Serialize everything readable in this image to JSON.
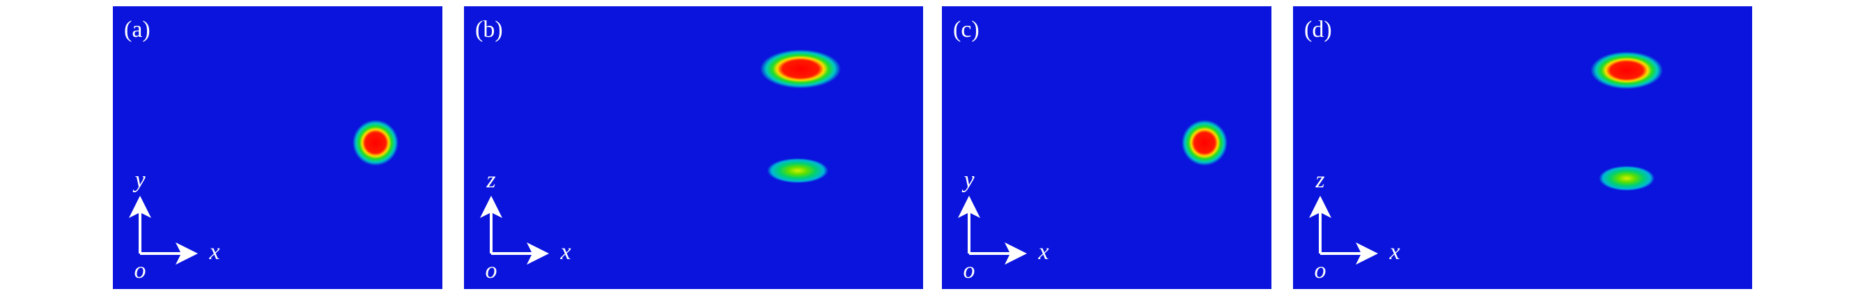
{
  "panels": [
    {
      "label": "(a)",
      "vertical_axis": "y",
      "horizontal_axis": "x",
      "origin": "o"
    },
    {
      "label": "(b)",
      "vertical_axis": "z",
      "horizontal_axis": "x",
      "origin": "o"
    },
    {
      "label": "(c)",
      "vertical_axis": "y",
      "horizontal_axis": "x",
      "origin": "o"
    },
    {
      "label": "(d)",
      "vertical_axis": "z",
      "horizontal_axis": "x",
      "origin": "o"
    }
  ]
}
